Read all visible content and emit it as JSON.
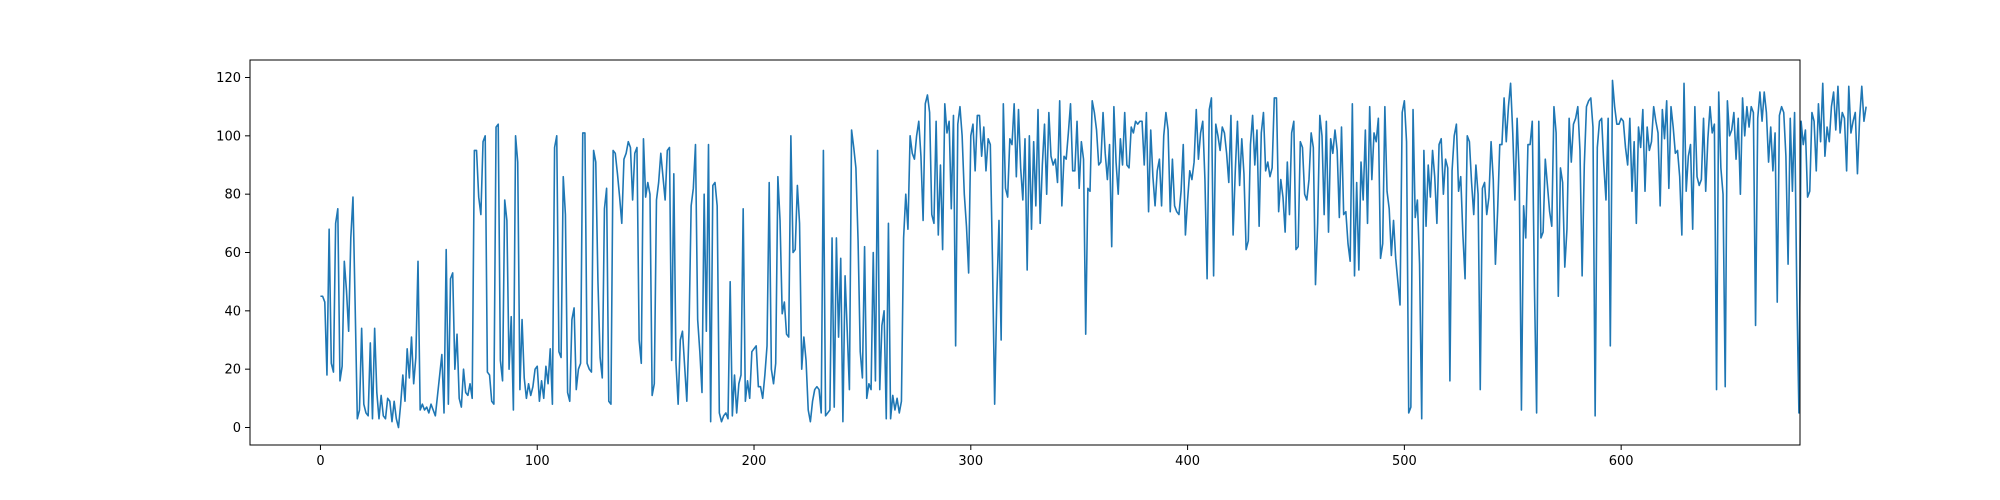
{
  "chart_data": {
    "type": "line",
    "title": "",
    "xlabel": "",
    "ylabel": "",
    "xlim": [
      -32.5,
      682.5
    ],
    "ylim": [
      -6,
      126
    ],
    "xticks": [
      0,
      100,
      200,
      300,
      400,
      500,
      600
    ],
    "yticks": [
      0,
      20,
      40,
      60,
      80,
      100,
      120
    ],
    "grid": false,
    "line_color": "#1f77b4",
    "series": [
      {
        "x_start": 0,
        "x_step": 1,
        "values": [
          45,
          45,
          43,
          18,
          68,
          22,
          19,
          70,
          75,
          16,
          21,
          57,
          47,
          33,
          65,
          79,
          42,
          3,
          6,
          34,
          8,
          5,
          4,
          29,
          3,
          34,
          12,
          3,
          11,
          4,
          3,
          10,
          9,
          2,
          9,
          3,
          0,
          8,
          18,
          9,
          27,
          17,
          31,
          15,
          24,
          57,
          6,
          8,
          6,
          7,
          5,
          8,
          6,
          4,
          11,
          18,
          25,
          5,
          61,
          8,
          51,
          53,
          20,
          32,
          10,
          7,
          20,
          12,
          11,
          15,
          10,
          95,
          95,
          79,
          73,
          98,
          100,
          19,
          18,
          9,
          8,
          103,
          104,
          23,
          16,
          78,
          71,
          20,
          38,
          6,
          100,
          91,
          13,
          37,
          17,
          10,
          15,
          11,
          14,
          20,
          21,
          9,
          16,
          10,
          21,
          15,
          27,
          8,
          96,
          100,
          26,
          24,
          86,
          73,
          12,
          9,
          37,
          41,
          13,
          20,
          22,
          101,
          101,
          22,
          20,
          19,
          95,
          91,
          50,
          24,
          17,
          75,
          82,
          9,
          8,
          95,
          94,
          87,
          79,
          70,
          92,
          94,
          98,
          96,
          78,
          94,
          96,
          30,
          22,
          99,
          79,
          84,
          80,
          11,
          15,
          78,
          84,
          94,
          86,
          78,
          95,
          96,
          23,
          87,
          22,
          8,
          30,
          33,
          21,
          9,
          33,
          76,
          82,
          97,
          37,
          26,
          12,
          80,
          33,
          97,
          2,
          83,
          84,
          76,
          5,
          2,
          4,
          5,
          3,
          50,
          4,
          18,
          5,
          15,
          18,
          75,
          9,
          16,
          10,
          26,
          27,
          28,
          14,
          14,
          10,
          18,
          28,
          84,
          20,
          15,
          22,
          86,
          71,
          39,
          43,
          32,
          31,
          100,
          60,
          61,
          83,
          70,
          20,
          31,
          23,
          6,
          2,
          9,
          13,
          14,
          13,
          5,
          95,
          4,
          5,
          6,
          65,
          7,
          65,
          31,
          58,
          2,
          52,
          33,
          13,
          102,
          96,
          89,
          64,
          26,
          17,
          62,
          10,
          15,
          13,
          60,
          16,
          95,
          13,
          35,
          40,
          3,
          70,
          3,
          11,
          6,
          10,
          5,
          9,
          65,
          80,
          68,
          100,
          94,
          92,
          100,
          105,
          93,
          71,
          111,
          114,
          108,
          73,
          70,
          105,
          66,
          90,
          61,
          111,
          101,
          105,
          75,
          107,
          28,
          104,
          110,
          100,
          80,
          69,
          53,
          100,
          104,
          88,
          107,
          107,
          93,
          103,
          88,
          99,
          97,
          57,
          8,
          45,
          71,
          30,
          111,
          82,
          79,
          99,
          97,
          111,
          86,
          109,
          89,
          78,
          99,
          54,
          100,
          68,
          98,
          76,
          109,
          70,
          90,
          104,
          80,
          108,
          93,
          90,
          92,
          84,
          112,
          76,
          93,
          92,
          101,
          111,
          88,
          88,
          105,
          82,
          98,
          92,
          32,
          82,
          81,
          112,
          108,
          102,
          90,
          91,
          108,
          94,
          85,
          97,
          62,
          110,
          91,
          80,
          99,
          90,
          108,
          90,
          89,
          103,
          101,
          105,
          104,
          105,
          105,
          90,
          108,
          74,
          102,
          86,
          76,
          88,
          92,
          76,
          100,
          108,
          102,
          74,
          92,
          76,
          74,
          73,
          81,
          97,
          66,
          78,
          88,
          85,
          91,
          109,
          92,
          101,
          105,
          85,
          51,
          109,
          113,
          52,
          104,
          100,
          95,
          103,
          101,
          94,
          84,
          107,
          66,
          88,
          105,
          83,
          99,
          87,
          61,
          64,
          97,
          107,
          90,
          102,
          69,
          101,
          108,
          88,
          91,
          86,
          89,
          113,
          113,
          74,
          85,
          79,
          67,
          91,
          73,
          101,
          105,
          61,
          62,
          98,
          96,
          80,
          78,
          85,
          101,
          96,
          49,
          70,
          107,
          100,
          73,
          105,
          67,
          99,
          94,
          102,
          95,
          72,
          103,
          73,
          74,
          63,
          57,
          111,
          52,
          84,
          54,
          91,
          78,
          102,
          70,
          110,
          85,
          101,
          98,
          106,
          58,
          63,
          110,
          81,
          75,
          59,
          71,
          58,
          50,
          42,
          108,
          112,
          98,
          5,
          7,
          109,
          72,
          78,
          56,
          3,
          95,
          69,
          90,
          79,
          95,
          86,
          70,
          97,
          99,
          80,
          92,
          89,
          16,
          88,
          100,
          104,
          81,
          86,
          66,
          51,
          100,
          98,
          84,
          73,
          90,
          80,
          13,
          82,
          84,
          73,
          79,
          98,
          85,
          56,
          74,
          97,
          97,
          113,
          98,
          110,
          118,
          101,
          78,
          106,
          86,
          6,
          76,
          65,
          97,
          97,
          105,
          48,
          5,
          105,
          65,
          67,
          92,
          83,
          74,
          69,
          110,
          101,
          45,
          89,
          84,
          55,
          68,
          106,
          91,
          104,
          106,
          110,
          95,
          52,
          90,
          110,
          112,
          113,
          103,
          4,
          96,
          105,
          106,
          90,
          78,
          106,
          28,
          119,
          110,
          104,
          104,
          106,
          105,
          96,
          90,
          106,
          81,
          98,
          70,
          103,
          96,
          109,
          81,
          103,
          95,
          98,
          110,
          105,
          101,
          76,
          109,
          99,
          112,
          82,
          110,
          103,
          94,
          95,
          86,
          66,
          118,
          81,
          93,
          97,
          68,
          110,
          86,
          83,
          85,
          106,
          81,
          99,
          110,
          101,
          104,
          13,
          115,
          89,
          80,
          14,
          112,
          100,
          102,
          108,
          92,
          106,
          80,
          113,
          100,
          110,
          103,
          110,
          108,
          35,
          106,
          115,
          105,
          115,
          108,
          91,
          103,
          88,
          101,
          43,
          107,
          110,
          108,
          93,
          56,
          106,
          81,
          108,
          48,
          5,
          105,
          97,
          102,
          79,
          81,
          108,
          105,
          88,
          111,
          98,
          118,
          93,
          103,
          98,
          110,
          115,
          102,
          117,
          101,
          108,
          106,
          88,
          117,
          101,
          105,
          108,
          87,
          106,
          117,
          105,
          110
        ]
      }
    ]
  }
}
